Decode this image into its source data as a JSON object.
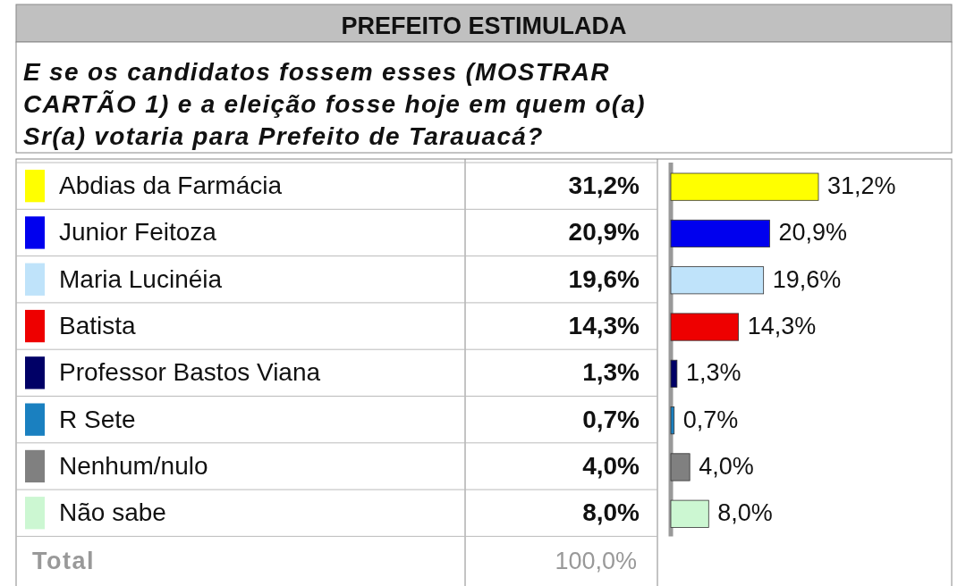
{
  "chart_data": {
    "type": "bar",
    "orientation": "horizontal",
    "title": "PREFEITO ESTIMULADA",
    "subtitle": "E se os candidatos fossem esses (MOSTRAR CARTÃO 1) e a eleição fosse hoje em quem o(a) Sr(a) votaria para Prefeito de Tarauacá?",
    "categories": [
      "Abdias da Farmácia",
      "Junior Feitoza",
      "Maria Lucinéia",
      "Batista",
      "Professor Bastos Viana",
      "R Sete",
      "Nenhum/nulo",
      "Não sabe"
    ],
    "values": [
      31.2,
      20.9,
      19.6,
      14.3,
      1.3,
      0.7,
      4.0,
      8.0
    ],
    "value_labels": [
      "31,2%",
      "20,9%",
      "19,6%",
      "14,3%",
      "1,3%",
      "0,7%",
      "4,0%",
      "8,0%"
    ],
    "colors": [
      "#ffff00",
      "#0000ee",
      "#bfe3fa",
      "#ee0000",
      "#000066",
      "#1a80c0",
      "#808080",
      "#ccf7d2"
    ],
    "data_labels": true,
    "annotations": [
      "Total",
      "100,0%"
    ]
  }
}
